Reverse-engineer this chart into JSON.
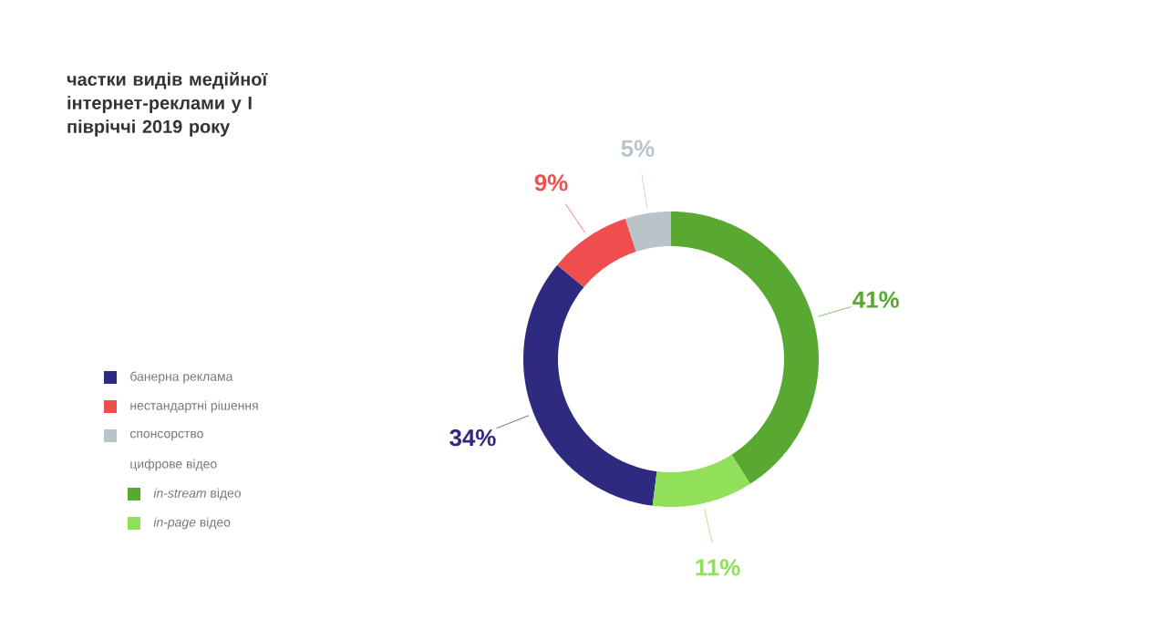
{
  "chart_data": {
    "type": "donut",
    "title": "частки видів медійної інтернет-реклами у І півріччі 2019 року",
    "categories": [
      "банерна реклама",
      "нестандартні рішення",
      "спонсорство",
      "*in-stream* відео",
      "*in-page* відео"
    ],
    "values": [
      34,
      9,
      5,
      41,
      11
    ],
    "value_labels": [
      "34%",
      "9%",
      "5%",
      "41%",
      "11%"
    ],
    "colors": [
      "#2e2a7f",
      "#f04e4e",
      "#b8c4c8",
      "#58a832",
      "#90e05a"
    ],
    "annotations": [
      "цифрове відео"
    ],
    "legend": "left"
  }
}
